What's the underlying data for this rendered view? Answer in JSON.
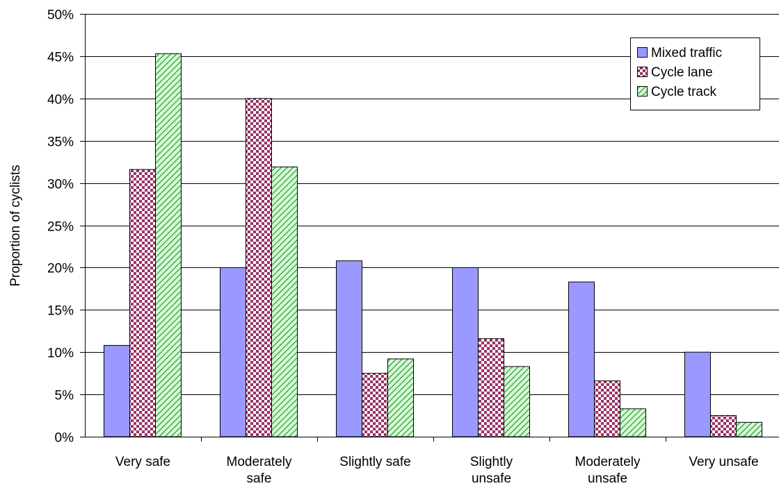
{
  "chart_data": {
    "type": "bar",
    "title": "",
    "xlabel": "",
    "ylabel": "Proportion of cyclists",
    "ylim": [
      0,
      50
    ],
    "yticks": [
      "0%",
      "5%",
      "10%",
      "15%",
      "20%",
      "25%",
      "30%",
      "35%",
      "40%",
      "45%",
      "50%"
    ],
    "grid": true,
    "legend_position": "top-right",
    "categories": [
      [
        "Very safe"
      ],
      [
        "Moderately",
        "safe"
      ],
      [
        "Slightly safe"
      ],
      [
        "Slightly",
        "unsafe"
      ],
      [
        "Moderately",
        "unsafe"
      ],
      [
        "Very unsafe"
      ]
    ],
    "series": [
      {
        "name": "Mixed traffic",
        "color": "#9999ff",
        "pattern": "solid",
        "values": [
          10.8,
          20.0,
          20.8,
          20.0,
          18.3,
          10.0
        ]
      },
      {
        "name": "Cycle lane",
        "color": "#993366",
        "pattern": "checker",
        "values": [
          31.6,
          40.0,
          7.5,
          11.6,
          6.6,
          2.5
        ]
      },
      {
        "name": "Cycle track",
        "color": "#2e8b57",
        "pattern": "diagonal",
        "values": [
          45.3,
          31.9,
          9.2,
          8.3,
          3.3,
          1.7
        ]
      }
    ]
  }
}
